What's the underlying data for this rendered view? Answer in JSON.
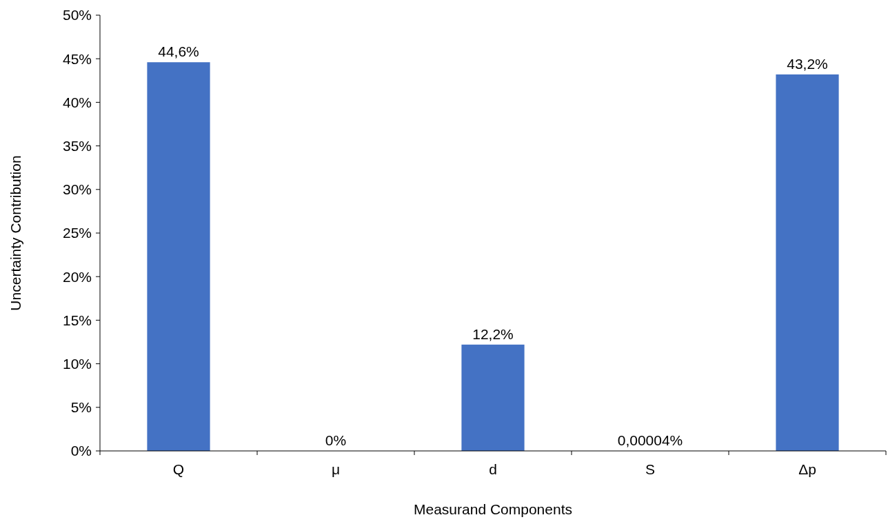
{
  "chart_data": {
    "type": "bar",
    "xlabel": "Measurand Components",
    "ylabel": "Uncertainty Contribution",
    "categories": [
      "Q",
      "μ",
      "d",
      "S",
      "Δp"
    ],
    "values": [
      44.6,
      0,
      12.2,
      4e-05,
      43.2
    ],
    "value_labels": [
      "44,6%",
      "0%",
      "12,2%",
      "0,00004%",
      "43,2%"
    ],
    "color": "#4472c4",
    "ylim": [
      0,
      50
    ],
    "yticks": [
      {
        "value": 0,
        "label": "0%"
      },
      {
        "value": 5,
        "label": "5%"
      },
      {
        "value": 10,
        "label": "10%"
      },
      {
        "value": 15,
        "label": "15%"
      },
      {
        "value": 20,
        "label": "20%"
      },
      {
        "value": 25,
        "label": "25%"
      },
      {
        "value": 30,
        "label": "30%"
      },
      {
        "value": 35,
        "label": "35%"
      },
      {
        "value": 40,
        "label": "40%"
      },
      {
        "value": 45,
        "label": "45%"
      },
      {
        "value": 50,
        "label": "50%"
      }
    ],
    "grid": false
  }
}
